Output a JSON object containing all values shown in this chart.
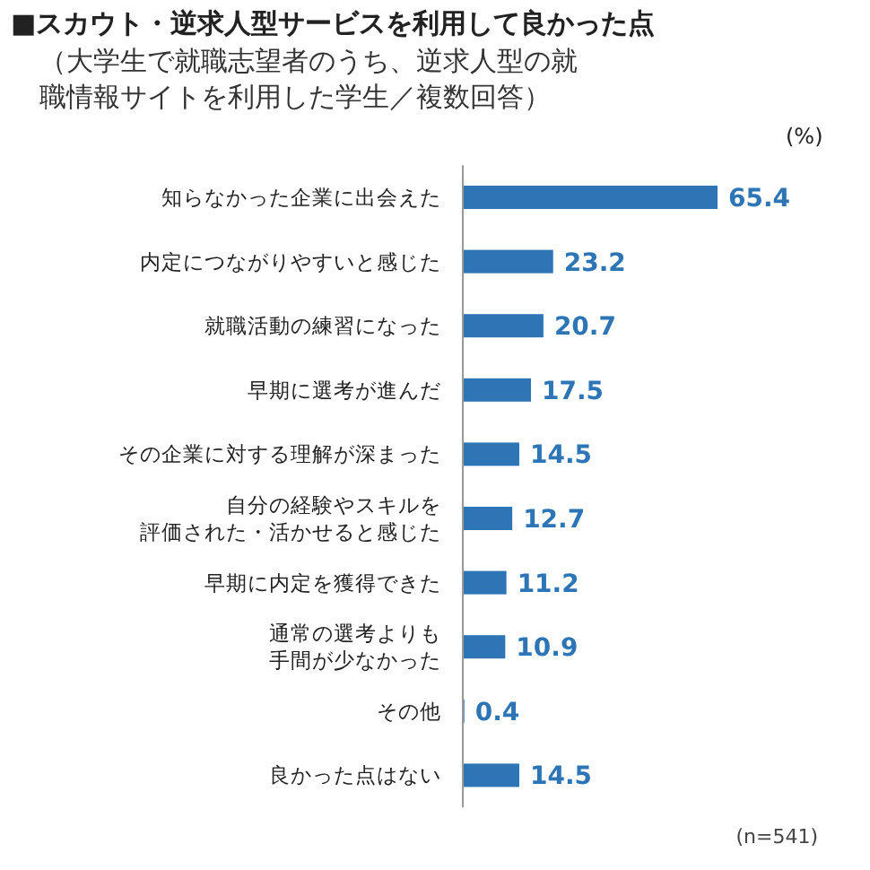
{
  "chart_data": {
    "type": "bar",
    "orientation": "horizontal",
    "title": "■スカウト・逆求人型サービスを利用して良かった点",
    "subtitle": "（大学生で就職志望者のうち、逆求人型の就職情報サイトを利用した学生／複数回答）",
    "categories": [
      "知らなかった企業に出会えた",
      "内定につながりやすいと感じた",
      "就職活動の練習になった",
      "早期に選考が進んだ",
      "その企業に対する理解が深まった",
      "自分の経験やスキルを評価された・活かせると感じた",
      "早期に内定を獲得できた",
      "通常の選考よりも手間が少なかった",
      "その他",
      "良かった点はない"
    ],
    "values": [
      65.4,
      23.2,
      20.7,
      17.5,
      14.5,
      12.7,
      11.2,
      10.9,
      0.4,
      14.5
    ],
    "color": "#2e75b6",
    "data_labels": true,
    "annotations": [
      "(%)",
      "(n=541)"
    ]
  }
}
